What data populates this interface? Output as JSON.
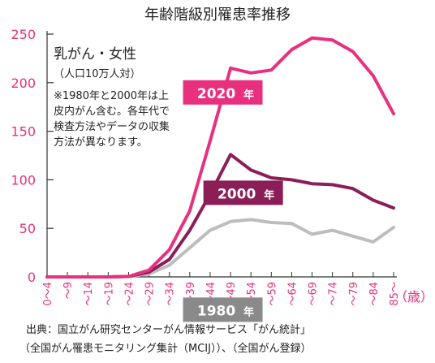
{
  "colors": {
    "accent": "#e8307f",
    "series_2020": "#e8307f",
    "series_2000": "#8b1e57",
    "series_1980": "#bdbdbd",
    "label_1980_bg": "#8a8a8a"
  },
  "chart_data": {
    "type": "line",
    "title": "年齢階級別罹患率推移",
    "subtitle": "乳がん・女性",
    "unit_note": "（人口10万人対）",
    "note_lines": [
      "※1980年と2000年は上",
      "皮内がん含む。各年代で",
      "検査方法やデータの収集",
      "方法が異なります。"
    ],
    "xunit": "（歳）",
    "categories": [
      "0～4",
      "～9",
      "～14",
      "～19",
      "～24",
      "～29",
      "～34",
      "～39",
      "～44",
      "～49",
      "～54",
      "～59",
      "～64",
      "～69",
      "～74",
      "～79",
      "～84",
      "85～"
    ],
    "ylim": [
      0,
      250
    ],
    "yticks": [
      0,
      50,
      100,
      150,
      200,
      250
    ],
    "grid": false,
    "legend": "inline-labels",
    "series": [
      {
        "name": "2020",
        "label_unit": "年",
        "color_key": "series_2020",
        "values": [
          0,
          0,
          0,
          0,
          0.5,
          7,
          28,
          68,
          140,
          215,
          210,
          213,
          234,
          246,
          244,
          232,
          207,
          168
        ]
      },
      {
        "name": "2000",
        "label_unit": "年",
        "color_key": "series_2000",
        "values": [
          0,
          0,
          0,
          0,
          0.5,
          5,
          18,
          48,
          85,
          126,
          110,
          102,
          100,
          96,
          95,
          91,
          79,
          71
        ]
      },
      {
        "name": "1980",
        "label_unit": "年",
        "color_key": "series_1980",
        "values": [
          0,
          0,
          0,
          0,
          0.5,
          3,
          12,
          30,
          48,
          57,
          59,
          56,
          55,
          44,
          48,
          42,
          36,
          51
        ]
      }
    ]
  },
  "source": {
    "line1": "出典：国立がん研究センターがん情報サービス「がん統計」",
    "line2": "（全国がん罹患モニタリング集計（MCIJ））、（全国がん登録）"
  }
}
